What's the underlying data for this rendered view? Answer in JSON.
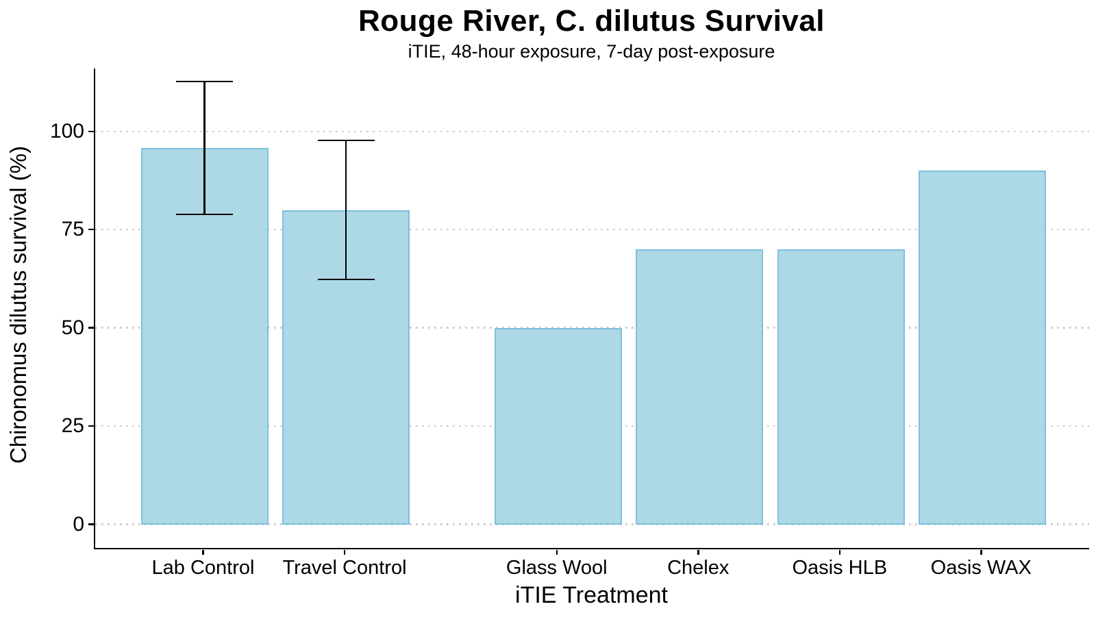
{
  "chart_data": {
    "type": "bar",
    "title": "Rouge River, C. dilutus Survival",
    "subtitle": "iTIE, 48-hour exposure, 7-day post-exposure",
    "xlabel": "iTIE Treatment",
    "ylabel": "Chironomus dilutus survival (%)",
    "categories": [
      "Lab Control",
      "Travel Control",
      "Glass Wool",
      "Chelex",
      "Oasis HLB",
      "Oasis WAX"
    ],
    "values": [
      95.8,
      80,
      50,
      70,
      70,
      90
    ],
    "error_bars": [
      {
        "low": 78.9,
        "high": 112.7
      },
      {
        "low": 62.3,
        "high": 97.7
      },
      null,
      null,
      null,
      null
    ],
    "y_ticks": [
      0,
      25,
      50,
      75,
      100
    ],
    "ylim": [
      -6,
      116
    ],
    "grid": "horizontal-dotted-major",
    "legend": "none",
    "slot_positions": [
      0,
      1,
      2.5,
      3.5,
      4.5,
      5.5
    ],
    "colors": {
      "bar_fill": "#ADD8E6",
      "bar_stroke": "#7EC0DC",
      "grid": "#C6C6C6",
      "axis": "#000000",
      "text": "#000000",
      "background": "#FFFFFF"
    }
  }
}
